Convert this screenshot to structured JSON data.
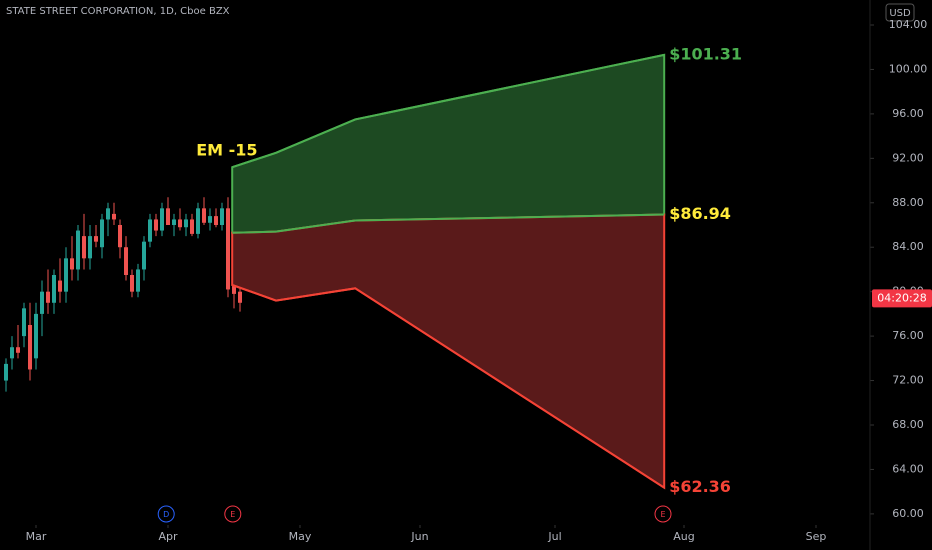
{
  "chart_data": {
    "type": "candlestick",
    "title": "STATE STREET CORPORATION, 1D, Cboe BZX",
    "currency": "USD",
    "ylim": [
      59,
      106.25
    ],
    "yticks": [
      {
        "value": 60,
        "label": "60.00"
      },
      {
        "value": 64,
        "label": "64.00"
      },
      {
        "value": 68,
        "label": "68.00"
      },
      {
        "value": 72,
        "label": "72.00"
      },
      {
        "value": 76,
        "label": "76.00"
      },
      {
        "value": 80,
        "label": "80.00"
      },
      {
        "value": 84,
        "label": "84.00"
      },
      {
        "value": 88,
        "label": "88.00"
      },
      {
        "value": 92,
        "label": "92.00"
      },
      {
        "value": 96,
        "label": "96.00"
      },
      {
        "value": 100,
        "label": "100.00"
      },
      {
        "value": 104,
        "label": "104.00"
      }
    ],
    "xlim": [
      0,
      145
    ],
    "xticks": [
      {
        "value": 6,
        "label": "Mar"
      },
      {
        "value": 28,
        "label": "Apr"
      },
      {
        "value": 50,
        "label": "May"
      },
      {
        "value": 70,
        "label": "Jun"
      },
      {
        "value": 92.5,
        "label": "Jul"
      },
      {
        "value": 114,
        "label": "Aug"
      },
      {
        "value": 136,
        "label": "Sep"
      }
    ],
    "up_color": "#26a69a",
    "down_color": "#ef5350",
    "candles": {
      "x": [
        1,
        2,
        3,
        4,
        5,
        6,
        7,
        8,
        9,
        10,
        11,
        12,
        13,
        14,
        15,
        16,
        17,
        18,
        19,
        20,
        21,
        22,
        23,
        24,
        25,
        26,
        27,
        28,
        29,
        30,
        31,
        32,
        33,
        34,
        35,
        36,
        37,
        38,
        39,
        40
      ],
      "open": [
        72,
        74,
        75,
        76,
        77,
        74,
        78,
        80,
        79,
        81,
        80,
        83,
        82,
        85,
        83,
        85,
        84,
        86.5,
        87,
        86,
        84,
        81.5,
        80,
        82,
        84.5,
        86.5,
        85.5,
        87.5,
        86,
        86.5,
        85.8,
        86.5,
        85.2,
        87.5,
        86.2,
        86.8,
        86,
        87.5,
        80.5,
        80
      ],
      "high": [
        74,
        76,
        77,
        79,
        79,
        79,
        81,
        82,
        82,
        83,
        84,
        85,
        86,
        87,
        86,
        86,
        87,
        88,
        88,
        86.5,
        85,
        82,
        82.5,
        85,
        87,
        87,
        88,
        88.5,
        87,
        87.5,
        87,
        87,
        88,
        88.5,
        87.5,
        87.5,
        88,
        88.5,
        81,
        80.5
      ],
      "low": [
        71,
        73,
        74,
        75,
        72,
        73,
        76,
        78,
        78,
        79,
        79,
        81,
        81,
        82,
        82,
        84,
        83,
        85,
        86,
        83,
        81,
        79.5,
        79.5,
        81,
        84,
        85,
        85,
        86,
        85,
        85.5,
        85,
        85,
        84.8,
        86,
        85.5,
        85.8,
        85.5,
        79.5,
        78.5,
        78.2
      ],
      "close": [
        73.5,
        75,
        74.5,
        78.5,
        73,
        78,
        80,
        79,
        81.5,
        80,
        83,
        82,
        85.5,
        83,
        85,
        84.5,
        86.5,
        87.5,
        86.5,
        84,
        81.5,
        80,
        82,
        84.5,
        86.5,
        85.5,
        87.5,
        86,
        86.5,
        85.8,
        86.5,
        85.2,
        87.5,
        86.2,
        86.8,
        86,
        87.5,
        80.2,
        79.8,
        79
      ]
    },
    "expected_move": {
      "x": [
        38.7,
        46,
        59.2,
        110.7
      ],
      "upper": {
        "values": [
          91.2,
          92.5,
          95.5,
          101.31
        ],
        "color": "#4caf50",
        "fill": "#1d4a22"
      },
      "mid": {
        "values": [
          85.3,
          85.4,
          86.4,
          86.94
        ]
      },
      "lower": {
        "values": [
          80.6,
          79.2,
          80.3,
          62.36
        ],
        "color": "#f44336",
        "fill": "#5a1a1a"
      }
    },
    "annotations": [
      {
        "text": "$101.31",
        "value": 101.31,
        "color": "#4caf50"
      },
      {
        "text": "$86.94",
        "value": 86.94,
        "color": "#ffeb3b"
      },
      {
        "text": "$62.36",
        "value": 62.36,
        "color": "#f44336"
      }
    ],
    "em_label": {
      "text": "EM -15",
      "color": "#ffeb3b"
    },
    "countdown": {
      "text": "04:20:28",
      "value": 79.4,
      "color": "#f23645"
    },
    "events": [
      {
        "label": "D",
        "x": 27.7,
        "color": "#2962ff"
      },
      {
        "label": "E",
        "x": 38.8,
        "color": "#f23645"
      },
      {
        "label": "E",
        "x": 110.5,
        "color": "#f23645"
      }
    ]
  }
}
